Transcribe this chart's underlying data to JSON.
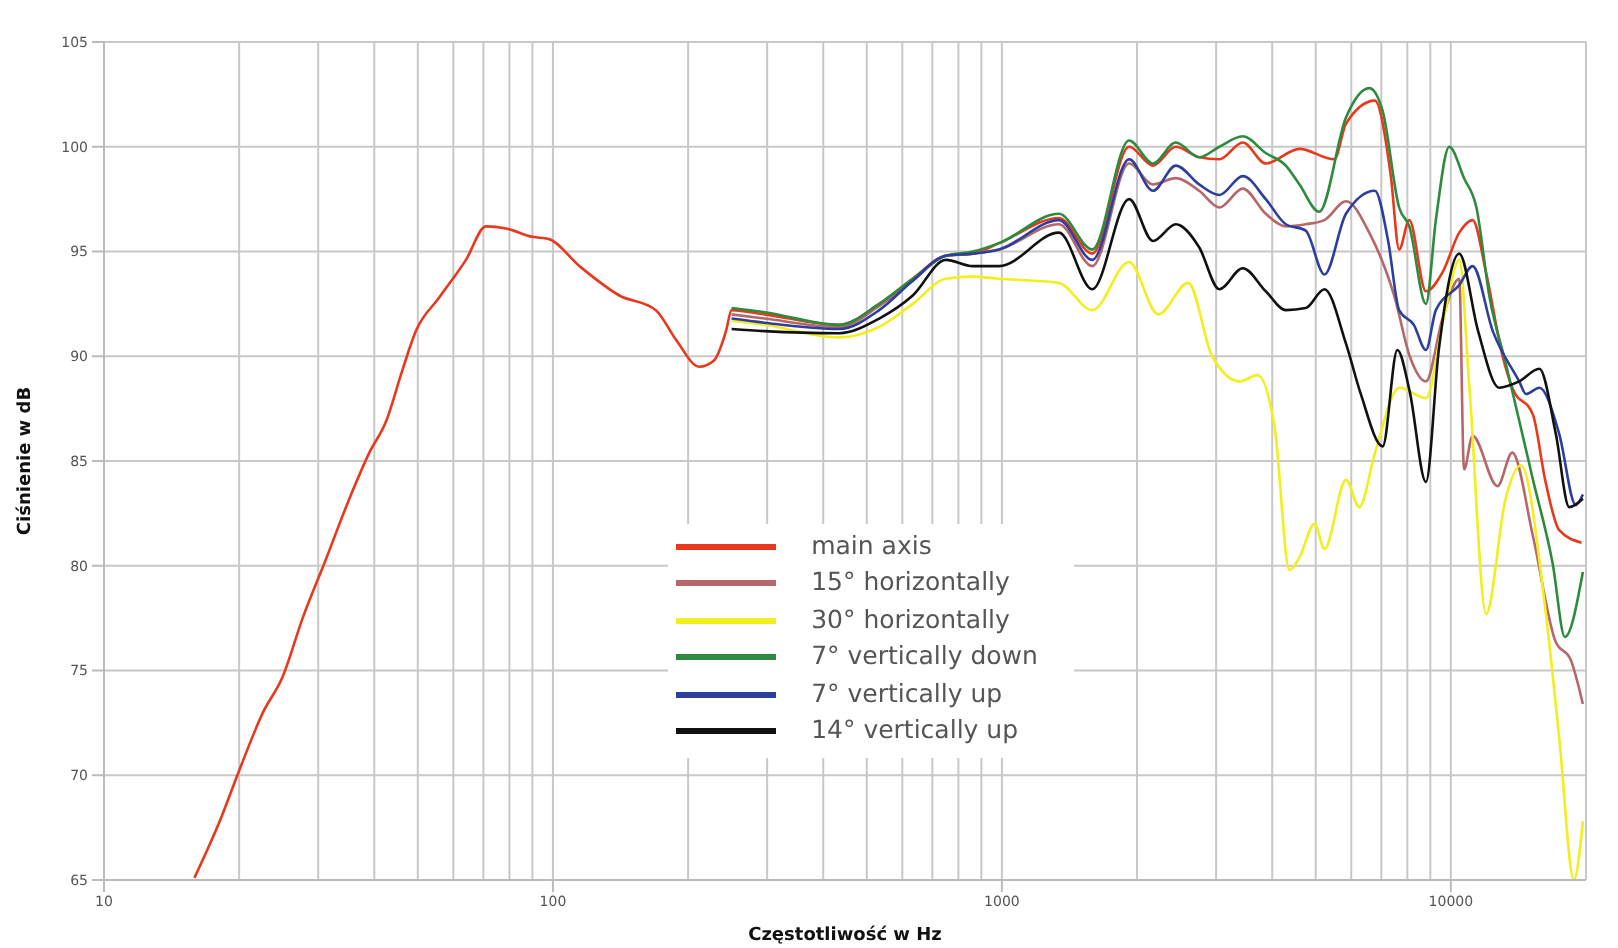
{
  "chart_data": {
    "type": "line",
    "xlabel": "Częstotliwość w Hz",
    "ylabel": "Ciśnienie w dB",
    "log": "x",
    "xlim": [
      10,
      20000
    ],
    "xticks": [
      10,
      100,
      1000,
      10000
    ],
    "ylim": [
      65,
      105
    ],
    "yticks": [
      65,
      70,
      75,
      80,
      85,
      90,
      95,
      100,
      105
    ],
    "grid": true,
    "legend": "bottom",
    "series": [
      {
        "name": "main axis",
        "color": "#e8391d",
        "x": [
          15.9,
          18.1,
          19.9,
          22.6,
          25,
          27.7,
          31.2,
          35.2,
          39,
          42.5,
          46.3,
          49.5,
          55.8,
          64,
          70.9,
          78.6,
          90,
          97.8,
          114.6,
          140.6,
          169.5,
          187.8,
          211.8,
          228.4,
          242.9,
          250,
          296,
          434,
          533,
          633,
          750,
          861,
          986,
          1340,
          1590,
          1920,
          2170,
          2440,
          2750,
          3050,
          3440,
          3870,
          4600,
          5500,
          5840,
          6770,
          7350,
          7670,
          8080,
          8800,
          9580,
          10440,
          11180,
          11980,
          13040,
          13700,
          15240,
          16220,
          17430,
          19550
        ],
        "values": [
          65.1,
          67.8,
          70.1,
          73,
          74.7,
          77.5,
          80.3,
          83.2,
          85.4,
          86.9,
          89.4,
          91.2,
          92.8,
          94.6,
          96.2,
          96.1,
          95.7,
          95.6,
          94.3,
          92.9,
          92.2,
          90.8,
          89.5,
          89.8,
          91.2,
          92.2,
          92,
          91.5,
          92.5,
          93.7,
          94.8,
          94.9,
          95.4,
          96.6,
          94.9,
          100,
          99.1,
          100,
          99.5,
          99.4,
          100.2,
          99.2,
          99.9,
          99.4,
          101.1,
          102.2,
          98.6,
          95.1,
          96.5,
          93.1,
          94,
          95.9,
          96.5,
          94,
          90,
          88.5,
          87.2,
          84.1,
          81.7,
          81.1
        ]
      },
      {
        "name": "15° horizontally",
        "color": "#b5676a",
        "x": [
          250,
          296,
          434,
          533,
          633,
          750,
          861,
          986,
          1340,
          1590,
          1920,
          2170,
          2440,
          2750,
          3050,
          3440,
          3870,
          4290,
          4750,
          5230,
          5840,
          6580,
          7500,
          8100,
          8800,
          9580,
          10440,
          10700,
          11180,
          12700,
          13700,
          15240,
          17100,
          18500,
          19680
        ],
        "values": [
          92,
          91.8,
          91.4,
          92.4,
          93.6,
          94.8,
          94.9,
          95.1,
          96.3,
          94.3,
          99.2,
          98.2,
          98.5,
          97.9,
          97.1,
          98,
          96.8,
          96.2,
          96.3,
          96.5,
          97.4,
          95.9,
          92.8,
          90,
          88.8,
          91.8,
          93.7,
          84.6,
          86.2,
          83.8,
          85.4,
          81.4,
          76.4,
          75.5,
          73.4
        ]
      },
      {
        "name": "30° horizontally",
        "color": "#f2ef1c",
        "x": [
          250,
          296,
          434,
          533,
          633,
          750,
          861,
          986,
          1340,
          1590,
          1920,
          2230,
          2600,
          2940,
          3390,
          3710,
          4050,
          4370,
          4600,
          4970,
          5230,
          5840,
          6250,
          6780,
          7670,
          8800,
          9680,
          10440,
          11000,
          11980,
          13240,
          14330,
          16220,
          17430,
          18800,
          19680
        ],
        "values": [
          91.7,
          91.5,
          90.9,
          91.4,
          92.5,
          93.7,
          93.8,
          93.7,
          93.5,
          92.2,
          94.5,
          92,
          93.5,
          90,
          88.8,
          89.1,
          86.6,
          79.8,
          80.4,
          82,
          80.8,
          84.1,
          82.8,
          85.4,
          88.5,
          88,
          92,
          94.6,
          88.5,
          77.7,
          83.2,
          84.8,
          78,
          71.8,
          65,
          67.8
        ]
      },
      {
        "name": "7° vertically down",
        "color": "#2e8b3e",
        "x": [
          250,
          296,
          434,
          533,
          633,
          750,
          861,
          986,
          1340,
          1590,
          1920,
          2170,
          2440,
          2750,
          3050,
          3440,
          3870,
          4290,
          4600,
          5090,
          5840,
          6580,
          7050,
          7670,
          8080,
          8800,
          9260,
          9920,
          10700,
          11400,
          12200,
          13240,
          15240,
          16860,
          17950,
          19680
        ],
        "values": [
          92.3,
          92.1,
          91.5,
          92.5,
          93.7,
          94.8,
          95,
          95.4,
          96.8,
          95.1,
          100.3,
          99.2,
          100.2,
          99.5,
          100,
          100.5,
          99.7,
          99.1,
          98.2,
          96.9,
          101.4,
          102.8,
          101.7,
          97.1,
          96.2,
          92.5,
          96.5,
          100,
          98.5,
          97.1,
          92.8,
          89.7,
          84.1,
          80.1,
          76.6,
          79.7
        ]
      },
      {
        "name": "7° vertically up",
        "color": "#2d3f9e",
        "x": [
          250,
          296,
          434,
          533,
          633,
          750,
          861,
          986,
          1340,
          1590,
          1920,
          2170,
          2440,
          2750,
          3050,
          3440,
          3870,
          4290,
          4750,
          5230,
          5840,
          6770,
          7250,
          7670,
          8270,
          8800,
          9260,
          10440,
          11180,
          12400,
          14200,
          14700,
          15750,
          17430,
          18980,
          19680
        ],
        "values": [
          91.8,
          91.6,
          91.3,
          92.2,
          93.6,
          94.8,
          94.9,
          95.1,
          96.5,
          94.6,
          99.4,
          97.9,
          99.1,
          98.2,
          97.7,
          98.6,
          97.5,
          96.3,
          96,
          93.9,
          96.8,
          97.9,
          95.5,
          92.2,
          91.5,
          90.3,
          92.2,
          93.4,
          94.3,
          91.2,
          88.8,
          88.2,
          88.5,
          86.3,
          82.9,
          83.4
        ]
      },
      {
        "name": "14° vertically up",
        "color": "#111111",
        "x": [
          250,
          296,
          434,
          533,
          633,
          750,
          861,
          986,
          1340,
          1590,
          1920,
          2170,
          2440,
          2750,
          3050,
          3440,
          3870,
          4290,
          4750,
          5230,
          5840,
          6300,
          7050,
          7600,
          8100,
          8800,
          9400,
          10440,
          11500,
          12800,
          14200,
          15750,
          17130,
          18350,
          19680
        ],
        "values": [
          91.3,
          91.2,
          91.1,
          91.8,
          92.9,
          94.6,
          94.3,
          94.3,
          95.9,
          93.2,
          97.5,
          95.5,
          96.3,
          95.2,
          93.2,
          94.2,
          93.1,
          92.2,
          92.3,
          93.2,
          90.6,
          88.2,
          85.7,
          90.3,
          88.3,
          84,
          90.3,
          94.9,
          91.2,
          88.5,
          88.8,
          89.4,
          86.3,
          82.8,
          83.2
        ]
      }
    ]
  }
}
